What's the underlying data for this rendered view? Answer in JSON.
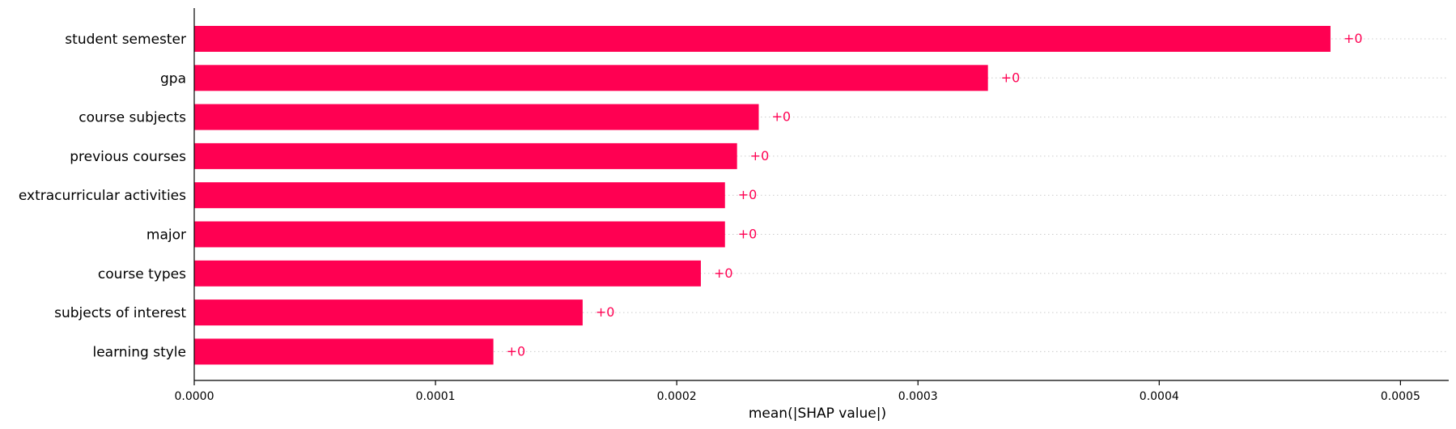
{
  "chart_data": {
    "type": "bar",
    "orientation": "horizontal",
    "categories": [
      "student semester",
      "gpa",
      "course subjects",
      "previous courses",
      "extracurricular activities",
      "major",
      "course types",
      "subjects of interest",
      "learning style"
    ],
    "values": [
      0.000471,
      0.000329,
      0.000234,
      0.000225,
      0.00022,
      0.00022,
      0.00021,
      0.000161,
      0.000124
    ],
    "data_labels": [
      "+0",
      "+0",
      "+0",
      "+0",
      "+0",
      "+0",
      "+0",
      "+0",
      "+0"
    ],
    "xlabel": "mean(|SHAP value|)",
    "ylabel": "",
    "title": "",
    "xlim": [
      0,
      0.00052
    ],
    "x_ticks": [
      0,
      0.0001,
      0.0002,
      0.0003,
      0.0004,
      0.0005
    ],
    "x_tick_labels": [
      "0.0000",
      "0.0001",
      "0.0002",
      "0.0003",
      "0.0004",
      "0.0005"
    ],
    "grid": "horizontal dotted guide lines per bar",
    "legend": "none",
    "colors": {
      "bar": "#ff0052",
      "label": "#ff0052",
      "axis": "#000000",
      "guide": "#cccccc"
    }
  }
}
